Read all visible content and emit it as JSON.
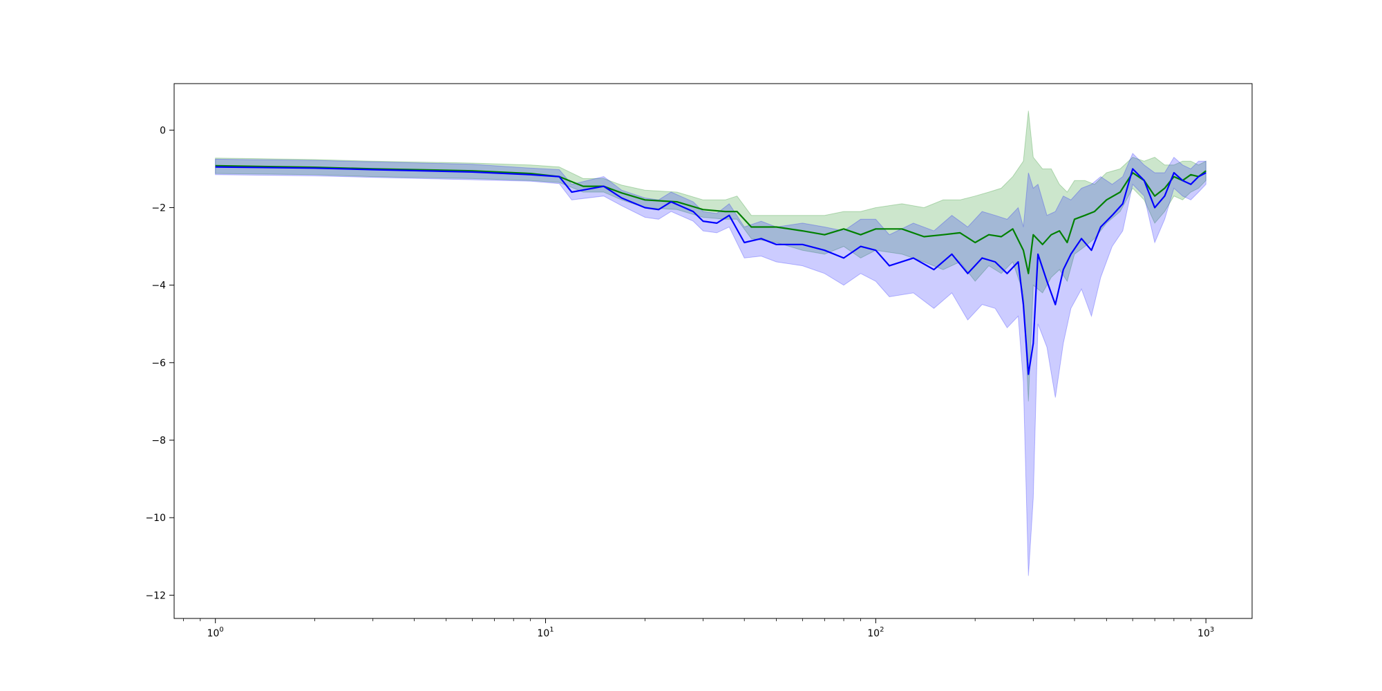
{
  "chart_data": {
    "type": "line",
    "title": "",
    "xlabel": "",
    "ylabel": "",
    "xscale": "log",
    "xlim": [
      0.75,
      1380
    ],
    "ylim": [
      -12.6,
      1.2
    ],
    "grid": false,
    "legend": "none",
    "x_ticks": [
      {
        "value": 1,
        "base": "10",
        "exp": "0"
      },
      {
        "value": 10,
        "base": "10",
        "exp": "1"
      },
      {
        "value": 100,
        "base": "10",
        "exp": "2"
      },
      {
        "value": 1000,
        "base": "10",
        "exp": "3"
      }
    ],
    "y_ticks": [
      {
        "value": 0,
        "label": "0"
      },
      {
        "value": -2,
        "label": "−2"
      },
      {
        "value": -4,
        "label": "−4"
      },
      {
        "value": -6,
        "label": "−6"
      },
      {
        "value": -8,
        "label": "−8"
      },
      {
        "value": -10,
        "label": "−10"
      },
      {
        "value": -12,
        "label": "−12"
      }
    ],
    "series": [
      {
        "color": "#008000",
        "band_color": "#008000",
        "x": [
          1,
          2,
          3,
          6,
          9,
          11,
          13,
          15,
          17,
          20,
          25,
          30,
          35,
          38,
          42,
          50,
          60,
          70,
          80,
          90,
          100,
          120,
          140,
          160,
          180,
          200,
          220,
          240,
          260,
          280,
          290,
          300,
          320,
          340,
          360,
          380,
          400,
          430,
          460,
          500,
          550,
          600,
          650,
          700,
          750,
          800,
          850,
          900,
          950,
          1000
        ],
        "y": [
          -0.92,
          -0.96,
          -1.0,
          -1.05,
          -1.12,
          -1.2,
          -1.45,
          -1.45,
          -1.62,
          -1.8,
          -1.85,
          -2.05,
          -2.1,
          -2.1,
          -2.5,
          -2.5,
          -2.6,
          -2.7,
          -2.55,
          -2.7,
          -2.55,
          -2.55,
          -2.75,
          -2.7,
          -2.65,
          -2.9,
          -2.7,
          -2.75,
          -2.55,
          -3.1,
          -3.7,
          -2.7,
          -2.95,
          -2.7,
          -2.6,
          -2.9,
          -2.3,
          -2.2,
          -2.1,
          -1.8,
          -1.6,
          -1.1,
          -1.3,
          -1.7,
          -1.5,
          -1.2,
          -1.3,
          -1.15,
          -1.2,
          -1.05
        ],
        "lower": [
          -1.12,
          -1.15,
          -1.2,
          -1.25,
          -1.3,
          -1.35,
          -1.6,
          -1.6,
          -1.8,
          -2.0,
          -2.05,
          -2.25,
          -2.3,
          -2.3,
          -2.8,
          -2.9,
          -3.1,
          -3.2,
          -3.0,
          -3.3,
          -3.1,
          -3.2,
          -3.4,
          -3.6,
          -3.4,
          -3.9,
          -3.5,
          -3.7,
          -3.4,
          -4.2,
          -7.0,
          -4.0,
          -4.2,
          -3.8,
          -3.6,
          -3.9,
          -3.2,
          -3.0,
          -2.8,
          -2.4,
          -2.1,
          -1.5,
          -1.8,
          -2.4,
          -2.1,
          -1.7,
          -1.8,
          -1.6,
          -1.5,
          -1.3
        ],
        "upper": [
          -0.72,
          -0.76,
          -0.8,
          -0.85,
          -0.9,
          -0.95,
          -1.25,
          -1.25,
          -1.42,
          -1.55,
          -1.6,
          -1.8,
          -1.8,
          -1.7,
          -2.2,
          -2.2,
          -2.2,
          -2.2,
          -2.1,
          -2.1,
          -2.0,
          -1.9,
          -2.0,
          -1.8,
          -1.8,
          -1.7,
          -1.6,
          -1.5,
          -1.2,
          -0.8,
          0.5,
          -0.7,
          -1.0,
          -1.0,
          -1.4,
          -1.6,
          -1.3,
          -1.3,
          -1.4,
          -1.1,
          -1.0,
          -0.7,
          -0.8,
          -0.7,
          -0.9,
          -0.9,
          -0.8,
          -0.8,
          -0.9,
          -0.8
        ]
      },
      {
        "color": "#0000ff",
        "band_color": "#0000ff",
        "x": [
          1,
          2,
          3,
          6,
          9,
          11,
          12,
          15,
          17,
          20,
          22,
          24,
          28,
          30,
          33,
          36,
          40,
          45,
          50,
          60,
          70,
          80,
          90,
          100,
          110,
          130,
          150,
          170,
          190,
          210,
          230,
          250,
          270,
          280,
          290,
          300,
          310,
          330,
          350,
          370,
          390,
          420,
          450,
          480,
          520,
          560,
          600,
          650,
          700,
          750,
          800,
          850,
          900,
          950,
          1000
        ],
        "y": [
          -0.95,
          -0.98,
          -1.02,
          -1.08,
          -1.15,
          -1.2,
          -1.6,
          -1.45,
          -1.75,
          -2.0,
          -2.05,
          -1.85,
          -2.1,
          -2.35,
          -2.4,
          -2.2,
          -2.9,
          -2.8,
          -2.95,
          -2.95,
          -3.1,
          -3.3,
          -3.0,
          -3.1,
          -3.5,
          -3.3,
          -3.6,
          -3.2,
          -3.7,
          -3.3,
          -3.4,
          -3.7,
          -3.4,
          -4.5,
          -6.3,
          -5.5,
          -3.2,
          -3.9,
          -4.5,
          -3.6,
          -3.2,
          -2.8,
          -3.1,
          -2.5,
          -2.2,
          -1.9,
          -1.0,
          -1.3,
          -2.0,
          -1.7,
          -1.1,
          -1.3,
          -1.4,
          -1.2,
          -1.1
        ],
        "lower": [
          -1.15,
          -1.18,
          -1.22,
          -1.28,
          -1.32,
          -1.38,
          -1.8,
          -1.7,
          -1.95,
          -2.25,
          -2.3,
          -2.1,
          -2.35,
          -2.6,
          -2.65,
          -2.5,
          -3.3,
          -3.25,
          -3.4,
          -3.5,
          -3.7,
          -4.0,
          -3.7,
          -3.9,
          -4.3,
          -4.2,
          -4.6,
          -4.2,
          -4.9,
          -4.5,
          -4.6,
          -5.1,
          -4.8,
          -6.5,
          -11.5,
          -9.5,
          -5.0,
          -5.6,
          -6.9,
          -5.5,
          -4.6,
          -4.1,
          -4.8,
          -3.8,
          -3.0,
          -2.6,
          -1.4,
          -1.7,
          -2.9,
          -2.3,
          -1.5,
          -1.7,
          -1.8,
          -1.6,
          -1.4
        ],
        "upper": [
          -0.75,
          -0.78,
          -0.82,
          -0.88,
          -0.98,
          -1.02,
          -1.4,
          -1.2,
          -1.55,
          -1.75,
          -1.8,
          -1.6,
          -1.85,
          -2.1,
          -2.15,
          -1.9,
          -2.5,
          -2.35,
          -2.5,
          -2.4,
          -2.5,
          -2.6,
          -2.3,
          -2.3,
          -2.7,
          -2.4,
          -2.6,
          -2.2,
          -2.5,
          -2.1,
          -2.2,
          -2.3,
          -2.0,
          -2.5,
          -1.1,
          -1.5,
          -1.4,
          -2.2,
          -2.1,
          -1.7,
          -1.8,
          -1.5,
          -1.4,
          -1.2,
          -1.4,
          -1.2,
          -0.6,
          -0.9,
          -1.1,
          -1.1,
          -0.7,
          -0.9,
          -1.0,
          -0.8,
          -0.8
        ]
      }
    ]
  }
}
